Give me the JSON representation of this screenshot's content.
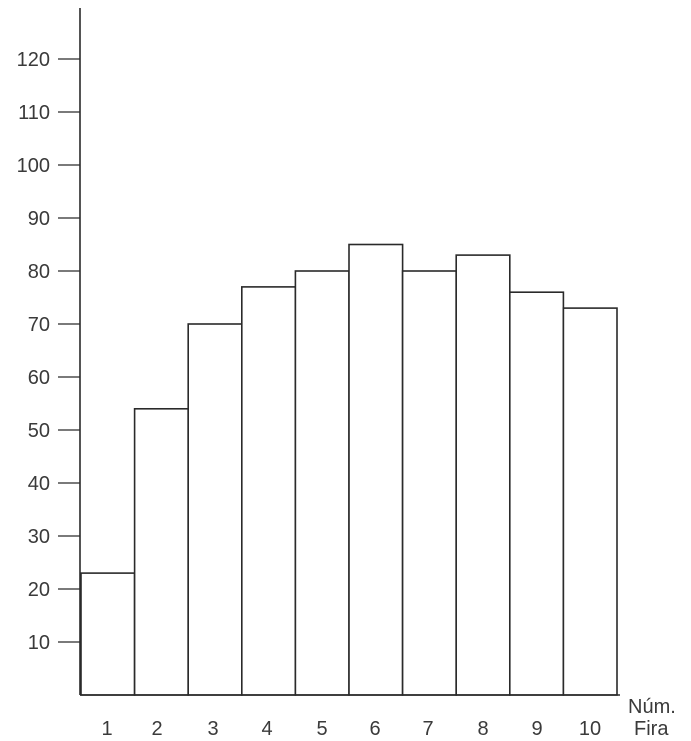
{
  "chart_data": {
    "type": "bar",
    "title": "",
    "xlabel": "Núm. Fira",
    "ylabel": "",
    "categories": [
      "1",
      "2",
      "3",
      "4",
      "5",
      "6",
      "7",
      "8",
      "9",
      "10"
    ],
    "values": [
      23,
      54,
      70,
      77,
      80,
      85,
      80,
      83,
      76,
      73
    ],
    "yticks": [
      10,
      20,
      30,
      40,
      50,
      60,
      70,
      80,
      90,
      100,
      110,
      120
    ],
    "ylim": [
      0,
      130
    ],
    "grid": false,
    "colors": {
      "bar_fill": "#ffffff",
      "bar_stroke": "#2a2a2a",
      "text": "#3a3a3a"
    }
  }
}
